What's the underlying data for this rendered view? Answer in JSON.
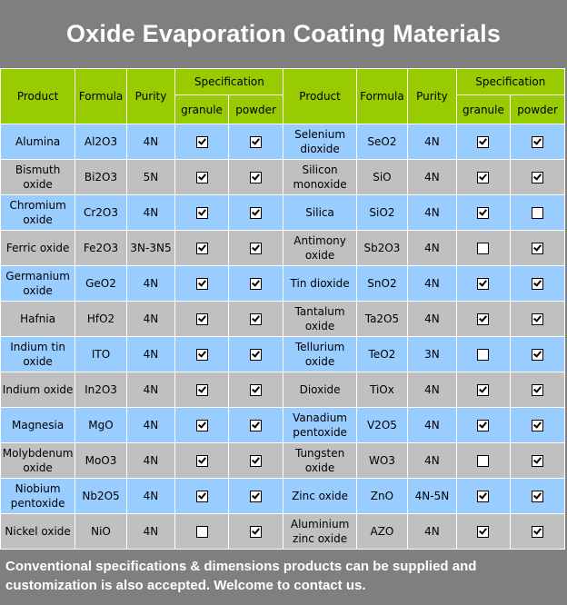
{
  "title": "Oxide Evaporation Coating Materials",
  "headers": {
    "product": "Product",
    "formula": "Formula",
    "purity": "Purity",
    "specification": "Specification",
    "granule": "granule",
    "powder": "powder"
  },
  "rows": [
    {
      "left": {
        "product": "Alumina",
        "formula": "Al2O3",
        "purity": "4N",
        "granule": true,
        "powder": true
      },
      "right": {
        "product": "Selenium dioxide",
        "formula": "SeO2",
        "purity": "4N",
        "granule": true,
        "powder": true
      }
    },
    {
      "left": {
        "product": "Bismuth oxide",
        "formula": "Bi2O3",
        "purity": "5N",
        "granule": true,
        "powder": true
      },
      "right": {
        "product": "Silicon monoxide",
        "formula": "SiO",
        "purity": "4N",
        "granule": true,
        "powder": true
      }
    },
    {
      "left": {
        "product": "Chromium oxide",
        "formula": "Cr2O3",
        "purity": "4N",
        "granule": true,
        "powder": true
      },
      "right": {
        "product": "Silica",
        "formula": "SiO2",
        "purity": "4N",
        "granule": true,
        "powder": false
      }
    },
    {
      "left": {
        "product": "Ferric oxide",
        "formula": "Fe2O3",
        "purity": "3N-3N5",
        "granule": true,
        "powder": true
      },
      "right": {
        "product": "Antimony oxide",
        "formula": "Sb2O3",
        "purity": "4N",
        "granule": false,
        "powder": true
      }
    },
    {
      "left": {
        "product": "Germanium oxide",
        "formula": "GeO2",
        "purity": "4N",
        "granule": true,
        "powder": true
      },
      "right": {
        "product": "Tin dioxide",
        "formula": "SnO2",
        "purity": "4N",
        "granule": true,
        "powder": true
      }
    },
    {
      "left": {
        "product": "Hafnia",
        "formula": "HfO2",
        "purity": "4N",
        "granule": true,
        "powder": true
      },
      "right": {
        "product": "Tantalum oxide",
        "formula": "Ta2O5",
        "purity": "4N",
        "granule": true,
        "powder": true
      }
    },
    {
      "left": {
        "product": "Indium tin oxide",
        "formula": "ITO",
        "purity": "4N",
        "granule": true,
        "powder": true
      },
      "right": {
        "product": "Tellurium oxide",
        "formula": "TeO2",
        "purity": "3N",
        "granule": false,
        "powder": true
      }
    },
    {
      "left": {
        "product": "Indium oxide",
        "formula": "In2O3",
        "purity": "4N",
        "granule": true,
        "powder": true
      },
      "right": {
        "product": "Dioxide",
        "formula": "TiOx",
        "purity": "4N",
        "granule": true,
        "powder": true
      }
    },
    {
      "left": {
        "product": "Magnesia",
        "formula": "MgO",
        "purity": "4N",
        "granule": true,
        "powder": true
      },
      "right": {
        "product": "Vanadium pentoxide",
        "formula": "V2O5",
        "purity": "4N",
        "granule": true,
        "powder": true
      }
    },
    {
      "left": {
        "product": "Molybdenum oxide",
        "formula": "MoO3",
        "purity": "4N",
        "granule": true,
        "powder": true
      },
      "right": {
        "product": "Tungsten oxide",
        "formula": "WO3",
        "purity": "4N",
        "granule": false,
        "powder": true
      }
    },
    {
      "left": {
        "product": "Niobium pentoxide",
        "formula": "Nb2O5",
        "purity": "4N",
        "granule": true,
        "powder": true
      },
      "right": {
        "product": "Zinc oxide",
        "formula": "ZnO",
        "purity": "4N-5N",
        "granule": true,
        "powder": true
      }
    },
    {
      "left": {
        "product": "Nickel oxide",
        "formula": "NiO",
        "purity": "4N",
        "granule": false,
        "powder": true
      },
      "right": {
        "product": "Aluminium zinc oxide",
        "formula": "AZO",
        "purity": "4N",
        "granule": true,
        "powder": true
      }
    }
  ],
  "footer": "Conventional specifications & dimensions products can be supplied and customization is also accepted. Welcome to contact us."
}
